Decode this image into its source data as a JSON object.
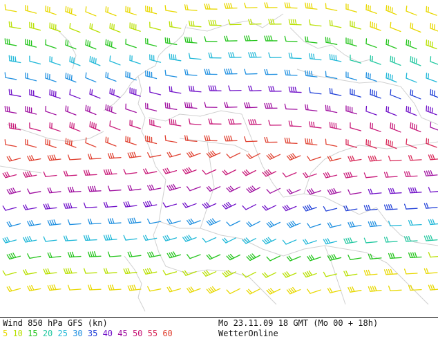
{
  "footer": {
    "title": "Wind 850 hPa GFS (kn)",
    "timestamp": "Mo 23.11.09 18 GMT (Mo 00 + 18h)",
    "brand": "WetterOnline"
  },
  "legend": [
    {
      "label": "5",
      "color": "#e8d800"
    },
    {
      "label": "10",
      "color": "#b8e000"
    },
    {
      "label": "15",
      "color": "#22c41a"
    },
    {
      "label": "20",
      "color": "#22c8a0"
    },
    {
      "label": "25",
      "color": "#20b8d8"
    },
    {
      "label": "30",
      "color": "#2090e0"
    },
    {
      "label": "35",
      "color": "#2040d8"
    },
    {
      "label": "40",
      "color": "#7010c8"
    },
    {
      "label": "45",
      "color": "#a010a0"
    },
    {
      "label": "50",
      "color": "#c81878"
    },
    {
      "label": "55",
      "color": "#d82858"
    },
    {
      "label": "60",
      "color": "#e04030"
    }
  ]
}
